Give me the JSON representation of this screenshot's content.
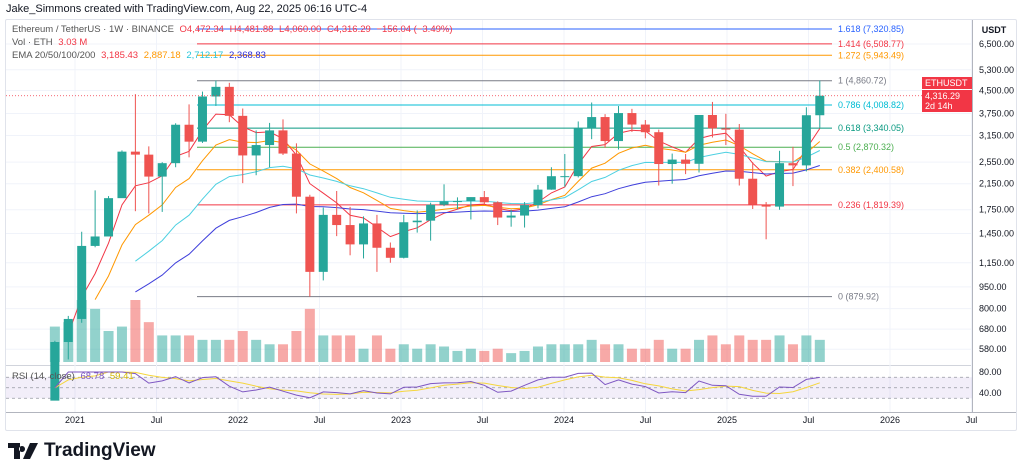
{
  "credit": "Jake_Simmons created with TradingView.com, Aug 22, 2025 06:16 UTC-4",
  "legend": {
    "symbol": "Ethereum / TetherUS · 1W · BINANCE",
    "open": "O4,472.34",
    "high": "H4,481.88",
    "low": "L4,060.00",
    "close": "C4,316.29",
    "change": "−156.04 (−3.49%)",
    "vol_label": "Vol · ETH",
    "vol_value": "3.03 M",
    "ema_label": "EMA 20/50/100/200",
    "ema20": "3,185.43",
    "ema50": "2,887.18",
    "ema100": "2,712.17",
    "ema200": "2,368.83",
    "rsi_label": "RSI (14, close)",
    "rsi_value": "68.78",
    "rsi_ma": "59.41"
  },
  "price_tag": {
    "symbol": "ETHUSDT",
    "price": "4,316.29",
    "countdown": "2d 14h"
  },
  "logo_text": "TradingView",
  "chart_data": {
    "type": "candlestick",
    "currency": "USDT",
    "yscale": "log",
    "ylim": [
      520,
      7600
    ],
    "y_ticks": [
      "6,500.00",
      "5,300.00",
      "4,500.00",
      "3,750.00",
      "3,150.00",
      "2,550.00",
      "2,150.00",
      "1,750.00",
      "1,450.00",
      "1,150.00",
      "950.00",
      "800.00",
      "680.00",
      "580.00"
    ],
    "rsi_ticks": [
      "80.00",
      "40.00"
    ],
    "x_ticks": [
      "2021",
      "Jul",
      "2022",
      "Jul",
      "2023",
      "Jul",
      "2024",
      "Jul",
      "2025",
      "Jul",
      "2026",
      "Jul"
    ],
    "colors": {
      "up": "#26a69a",
      "down": "#ef5350",
      "ema20": "#f23645",
      "ema50": "#ff9800",
      "ema100": "#4dd0e1",
      "ema200": "#3f3fdb",
      "rsi": "#7e57c2",
      "rsi_ma": "#f5d63d"
    },
    "fib_levels": [
      {
        "ratio": "1.618",
        "price": 7320.85,
        "label": "1.618 (7,320.85)",
        "color": "#2962ff"
      },
      {
        "ratio": "1.414",
        "price": 6508.77,
        "label": "1.414 (6,508.77)",
        "color": "#f23645"
      },
      {
        "ratio": "1.272",
        "price": 5943.49,
        "label": "1.272 (5,943.49)",
        "color": "#ff9800"
      },
      {
        "ratio": "1",
        "price": 4860.72,
        "label": "1 (4,860.72)",
        "color": "#787b86"
      },
      {
        "ratio": "0.786",
        "price": 4008.82,
        "label": "0.786 (4,008.82)",
        "color": "#00bcd4"
      },
      {
        "ratio": "0.618",
        "price": 3340.05,
        "label": "0.618 (3,340.05)",
        "color": "#089981"
      },
      {
        "ratio": "0.5",
        "price": 2870.32,
        "label": "0.5 (2,870.32)",
        "color": "#4caf50"
      },
      {
        "ratio": "0.382",
        "price": 2400.58,
        "label": "0.382 (2,400.58)",
        "color": "#ff9800"
      },
      {
        "ratio": "0.236",
        "price": 1819.39,
        "label": "0.236 (1,819.39)",
        "color": "#f23645"
      },
      {
        "ratio": "0",
        "price": 879.92,
        "label": "0 (879.92)",
        "color": "#787b86"
      }
    ],
    "candles": [
      [
        "2020-11",
        386,
        620,
        370,
        614,
        8
      ],
      [
        "2020-12",
        614,
        755,
        535,
        737,
        9
      ],
      [
        "2021-01",
        737,
        1470,
        715,
        1314,
        14
      ],
      [
        "2021-02",
        1314,
        2040,
        1300,
        1416,
        12
      ],
      [
        "2021-03",
        1416,
        1950,
        1440,
        1918,
        7
      ],
      [
        "2021-04",
        1918,
        2800,
        1940,
        2772,
        8
      ],
      [
        "2021-05",
        2772,
        4370,
        1730,
        2707,
        14
      ],
      [
        "2021-06",
        2707,
        2890,
        1700,
        2275,
        9
      ],
      [
        "2021-07",
        2275,
        2550,
        1720,
        2530,
        6
      ],
      [
        "2021-08",
        2530,
        3470,
        2450,
        3430,
        6
      ],
      [
        "2021-09",
        3430,
        4030,
        2650,
        3000,
        6
      ],
      [
        "2021-10",
        3000,
        4460,
        2970,
        4290,
        5
      ],
      [
        "2021-11",
        4290,
        4870,
        3980,
        4630,
        5
      ],
      [
        "2021-12",
        4630,
        4780,
        3500,
        3680,
        5
      ],
      [
        "2022-01",
        3680,
        3900,
        2160,
        2690,
        7
      ],
      [
        "2022-02",
        2690,
        3280,
        2300,
        2920,
        5
      ],
      [
        "2022-03",
        2920,
        3480,
        2450,
        3280,
        4
      ],
      [
        "2022-04",
        3280,
        3580,
        2700,
        2730,
        4
      ],
      [
        "2022-05",
        2730,
        2960,
        1700,
        1940,
        7
      ],
      [
        "2022-06",
        1940,
        1970,
        880,
        1070,
        12
      ],
      [
        "2022-07",
        1070,
        1780,
        1000,
        1680,
        6
      ],
      [
        "2022-08",
        1680,
        2030,
        1420,
        1550,
        6
      ],
      [
        "2022-09",
        1550,
        1790,
        1220,
        1330,
        6
      ],
      [
        "2022-10",
        1330,
        1660,
        1190,
        1570,
        3
      ],
      [
        "2022-11",
        1570,
        1680,
        1070,
        1295,
        6
      ],
      [
        "2022-12",
        1295,
        1350,
        1150,
        1196,
        3
      ],
      [
        "2023-01",
        1196,
        1680,
        1190,
        1585,
        4
      ],
      [
        "2023-02",
        1585,
        1740,
        1460,
        1605,
        3
      ],
      [
        "2023-03",
        1605,
        1850,
        1370,
        1821,
        4
      ],
      [
        "2023-04",
        1821,
        2140,
        1800,
        1870,
        3.5
      ],
      [
        "2023-05",
        1870,
        1930,
        1760,
        1874,
        2.5
      ],
      [
        "2023-06",
        1874,
        1930,
        1620,
        1934,
        3
      ],
      [
        "2023-07",
        1934,
        2030,
        1820,
        1856,
        2.5
      ],
      [
        "2023-08",
        1856,
        1870,
        1550,
        1645,
        3
      ],
      [
        "2023-09",
        1645,
        1750,
        1530,
        1671,
        2
      ],
      [
        "2023-10",
        1671,
        1860,
        1520,
        1815,
        2.5
      ],
      [
        "2023-11",
        1815,
        2130,
        1770,
        2052,
        3.5
      ],
      [
        "2023-12",
        2052,
        2450,
        2050,
        2282,
        4
      ],
      [
        "2024-01",
        2282,
        2720,
        2100,
        2283,
        4
      ],
      [
        "2024-02",
        2283,
        3520,
        2260,
        3340,
        4
      ],
      [
        "2024-03",
        3340,
        4090,
        3060,
        3645,
        5
      ],
      [
        "2024-04",
        3645,
        3730,
        2860,
        3014,
        4
      ],
      [
        "2024-05",
        3014,
        3980,
        2820,
        3762,
        4
      ],
      [
        "2024-06",
        3762,
        3890,
        3240,
        3435,
        3
      ],
      [
        "2024-07",
        3435,
        3560,
        3080,
        3233,
        3
      ],
      [
        "2024-08",
        3233,
        3300,
        2120,
        2513,
        5
      ],
      [
        "2024-09",
        2513,
        2730,
        2150,
        2603,
        3
      ],
      [
        "2024-10",
        2603,
        2720,
        2320,
        2518,
        3
      ],
      [
        "2024-11",
        2518,
        3690,
        2350,
        3705,
        5
      ],
      [
        "2024-12",
        3705,
        4110,
        3100,
        3332,
        6
      ],
      [
        "2025-01",
        3332,
        3740,
        2920,
        3300,
        4
      ],
      [
        "2025-02",
        3300,
        3450,
        2120,
        2237,
        6
      ],
      [
        "2025-03",
        2237,
        2550,
        1760,
        1822,
        5
      ],
      [
        "2025-04",
        1822,
        1860,
        1385,
        1794,
        5
      ],
      [
        "2025-05",
        1794,
        2790,
        1750,
        2530,
        6
      ],
      [
        "2025-06",
        2530,
        2880,
        2110,
        2486,
        4
      ],
      [
        "2025-07",
        2486,
        3940,
        2370,
        3698,
        6
      ],
      [
        "2025-08",
        3698,
        4870,
        3350,
        4316,
        5
      ]
    ]
  }
}
